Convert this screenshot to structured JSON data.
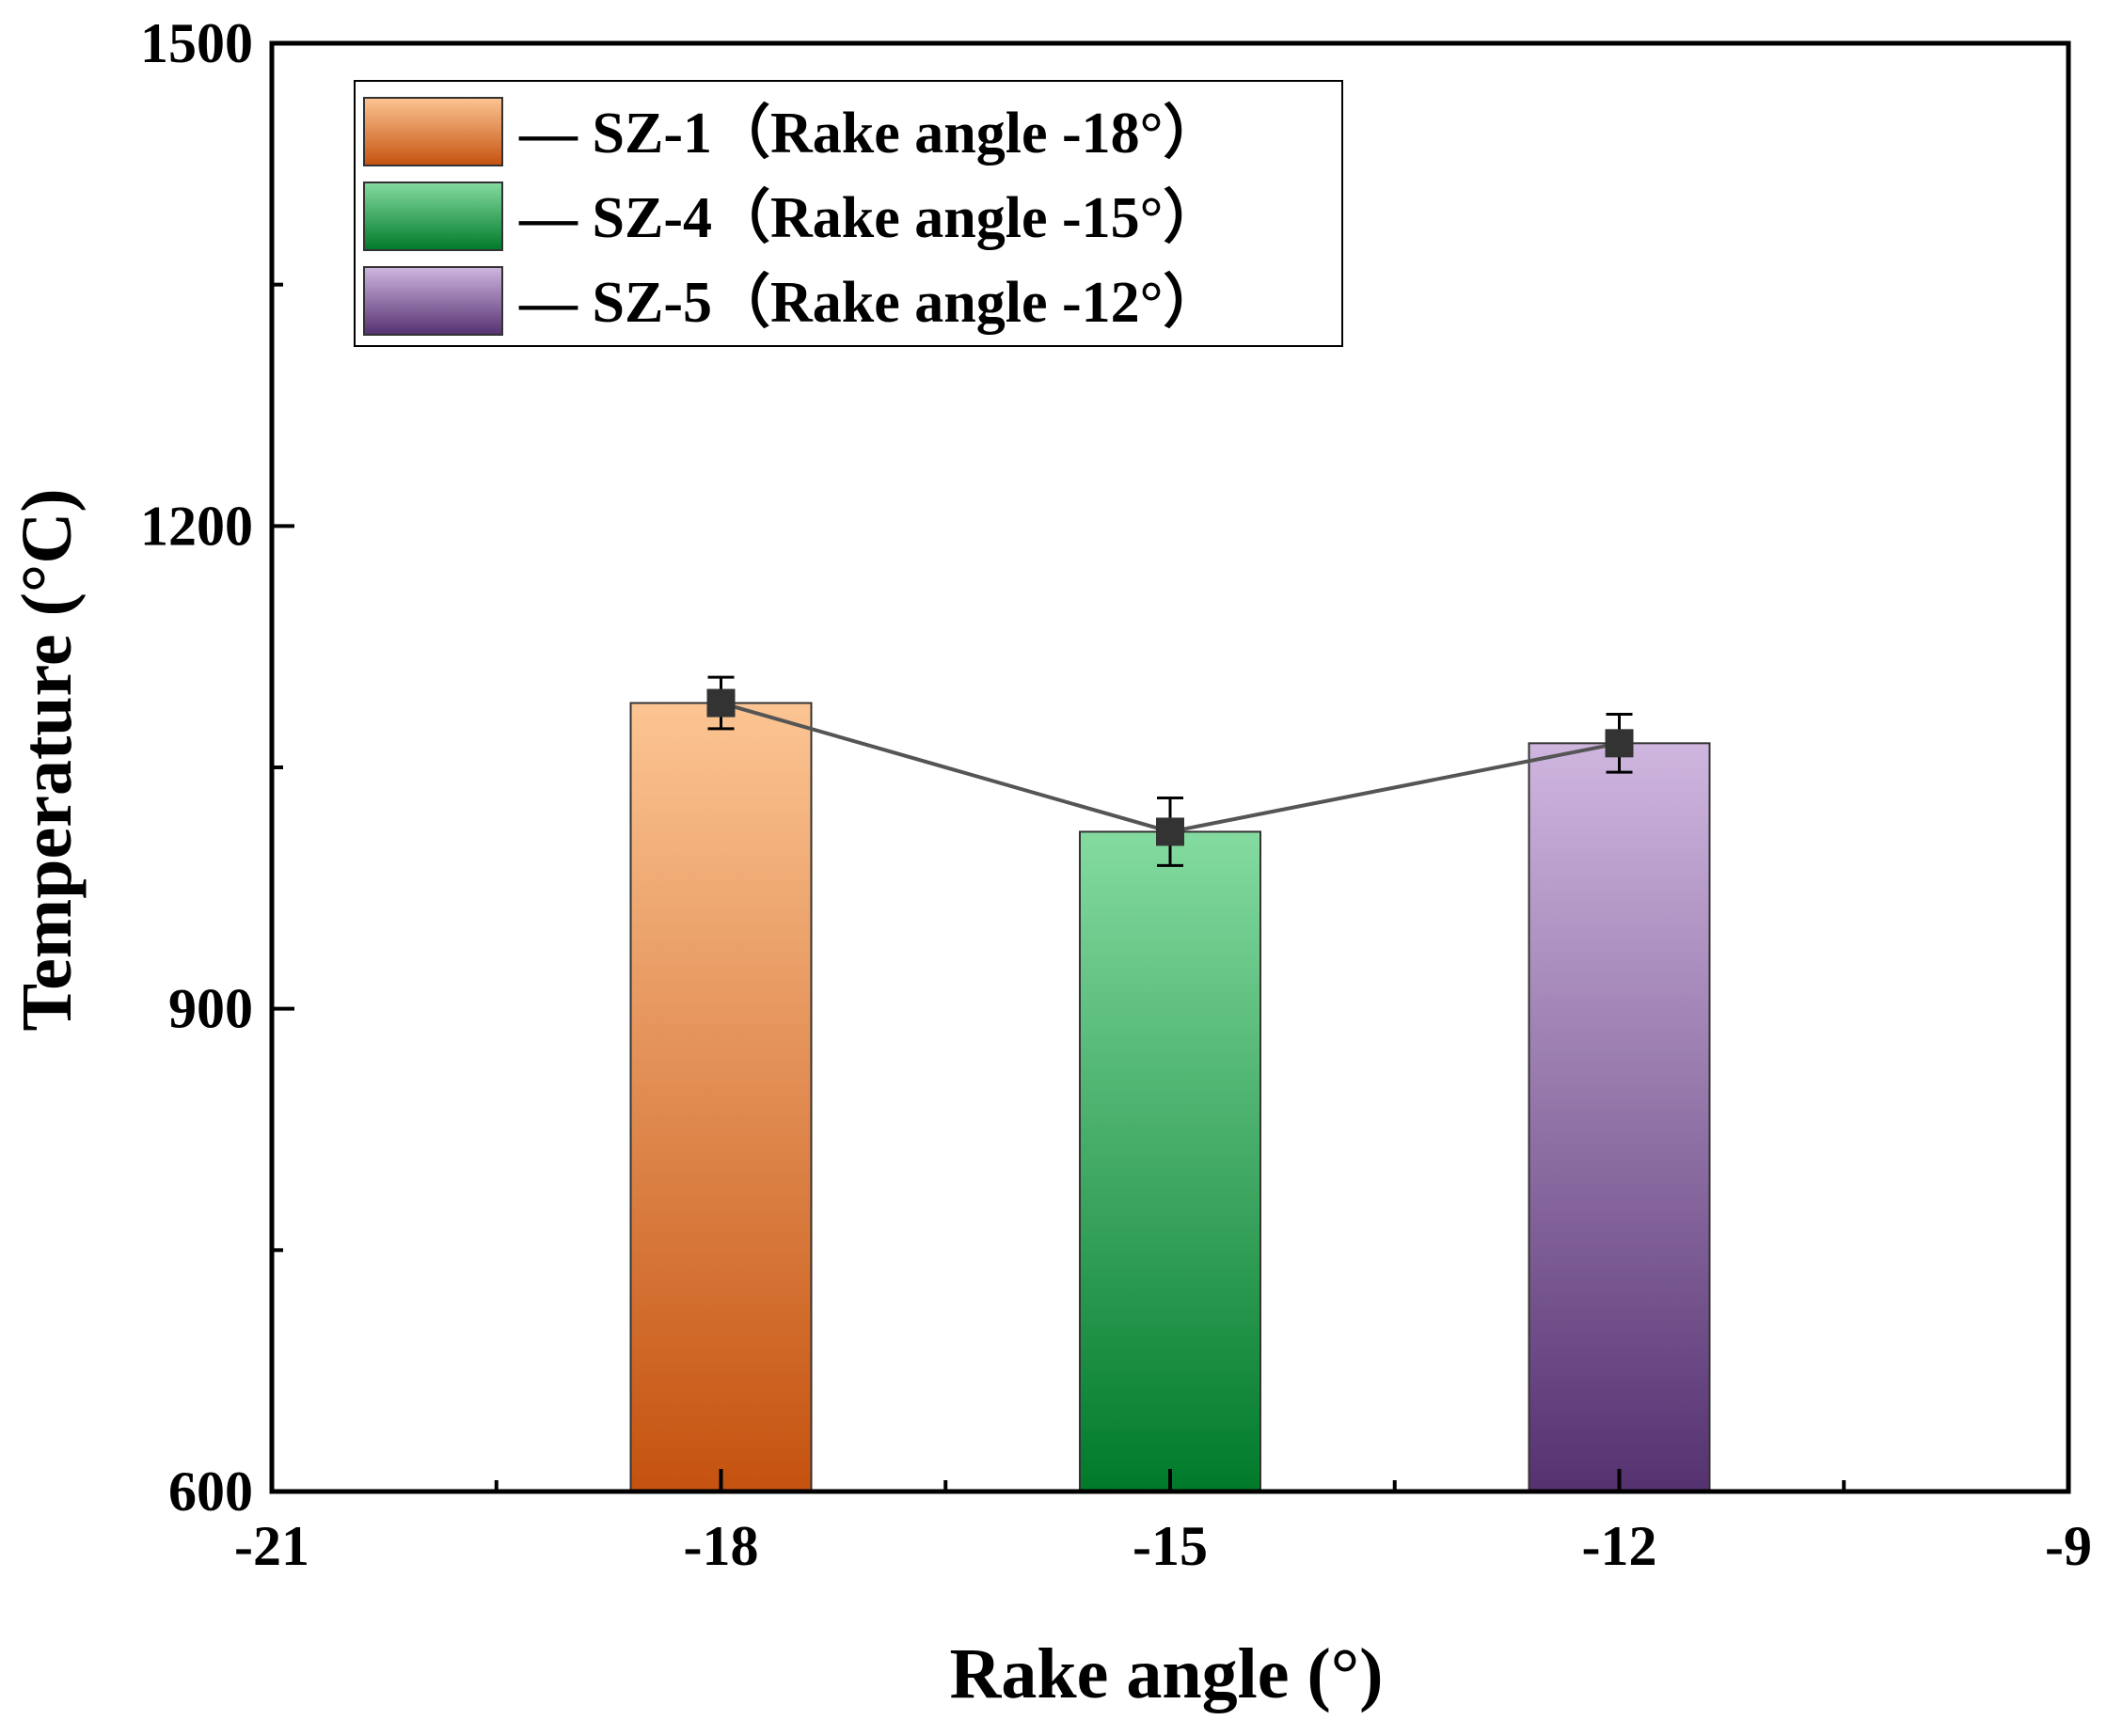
{
  "chart_data": {
    "type": "bar",
    "xlabel": "Rake angle (°)",
    "ylabel": "Temperature (°C)",
    "xlim": [
      -21,
      -9
    ],
    "ylim": [
      600,
      1500
    ],
    "x_ticks": [
      "-21",
      "-18",
      "-15",
      "-12",
      "-9"
    ],
    "y_ticks": [
      "600",
      "900",
      "1200",
      "1500"
    ],
    "grid": false,
    "legend_position": "top-left",
    "series": [
      {
        "name": "SZ-1",
        "legend_label": "— SZ-1（Rake angle -18°）",
        "x": -18,
        "value": 1090,
        "error": 16,
        "color_top": "#fcc593",
        "color_bottom": "#c5520f"
      },
      {
        "name": "SZ-4",
        "legend_label": "— SZ-4（Rake angle -15°）",
        "x": -15,
        "value": 1010,
        "error": 21,
        "color_top": "#84dba0",
        "color_bottom": "#007a2a"
      },
      {
        "name": "SZ-5",
        "legend_label": "— SZ-5（Rake angle -12°）",
        "x": -12,
        "value": 1065,
        "error": 18,
        "color_top": "#cfb6df",
        "color_bottom": "#553170"
      }
    ],
    "line_color": "#555555",
    "marker_color": "#333333"
  }
}
